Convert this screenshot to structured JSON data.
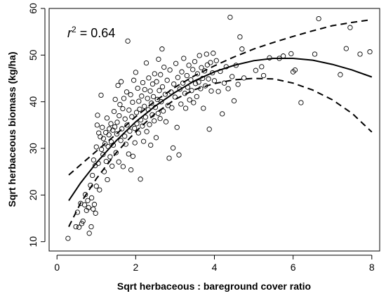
{
  "chart_data": {
    "type": "scatter",
    "xlabel": "Sqrt herbaceous : bareground cover ratio",
    "ylabel": "Sqrt herbaceous biomass (kg/ha)",
    "xlim": [
      -0.2,
      8.2
    ],
    "ylim": [
      8,
      60
    ],
    "xticks": [
      0,
      2,
      4,
      6,
      8
    ],
    "yticks": [
      10,
      20,
      30,
      40,
      50,
      60
    ],
    "grid": false,
    "annotation": {
      "r": "r",
      "sup": "2",
      "rest": " = 0.64"
    },
    "fit_line": {
      "style": "solid",
      "x": [
        0.3,
        0.6,
        1.0,
        1.5,
        2.0,
        2.5,
        3.0,
        3.5,
        4.0,
        4.5,
        5.0,
        5.5,
        6.0,
        6.5,
        7.0,
        7.5,
        8.0
      ],
      "y": [
        18.8,
        22.6,
        26.9,
        31.6,
        35.7,
        39.1,
        42.0,
        44.5,
        46.4,
        47.8,
        48.8,
        49.3,
        49.3,
        48.9,
        48.0,
        46.8,
        45.3
      ]
    },
    "upper_band": {
      "style": "dashed",
      "x": [
        0.3,
        0.6,
        1.0,
        1.5,
        2.0,
        2.5,
        3.0,
        3.5,
        4.0,
        4.5,
        5.0,
        5.5,
        6.0,
        6.5,
        7.0,
        7.5,
        8.0
      ],
      "y": [
        24.3,
        26.5,
        29.4,
        33.0,
        36.8,
        40.2,
        43.1,
        45.6,
        47.7,
        49.6,
        51.3,
        52.7,
        54.0,
        55.2,
        56.3,
        57.0,
        57.6
      ]
    },
    "lower_band": {
      "style": "dashed",
      "x": [
        0.3,
        0.6,
        1.0,
        1.5,
        2.0,
        2.5,
        3.0,
        3.5,
        4.0,
        4.5,
        5.0,
        5.5,
        6.0,
        6.5,
        7.0,
        7.5,
        8.0
      ],
      "y": [
        13.2,
        18.3,
        23.5,
        29.0,
        33.6,
        37.5,
        40.5,
        42.6,
        43.9,
        44.7,
        45.0,
        44.9,
        44.0,
        42.5,
        40.4,
        37.5,
        33.5
      ]
    },
    "points": [
      [
        0.28,
        10.7
      ],
      [
        0.48,
        13.2
      ],
      [
        0.52,
        16.3
      ],
      [
        0.56,
        13.1
      ],
      [
        0.6,
        18.2
      ],
      [
        0.63,
        13.9
      ],
      [
        0.66,
        14.4
      ],
      [
        0.7,
        17.9
      ],
      [
        0.72,
        20.1
      ],
      [
        0.75,
        16.7
      ],
      [
        0.78,
        18.8
      ],
      [
        0.8,
        17.3
      ],
      [
        0.82,
        11.8
      ],
      [
        0.85,
        22.1
      ],
      [
        0.87,
        13.2
      ],
      [
        0.88,
        19.4
      ],
      [
        0.9,
        24.2
      ],
      [
        0.92,
        17.0
      ],
      [
        0.93,
        27.5
      ],
      [
        0.95,
        18.0
      ],
      [
        0.97,
        26.3
      ],
      [
        0.98,
        16.1
      ],
      [
        1.0,
        21.9
      ],
      [
        1.0,
        30.3
      ],
      [
        1.02,
        35.0
      ],
      [
        1.03,
        37.1
      ],
      [
        1.05,
        26.8
      ],
      [
        1.06,
        33.3
      ],
      [
        1.08,
        21.1
      ],
      [
        1.1,
        32.5
      ],
      [
        1.12,
        41.4
      ],
      [
        1.13,
        29.8
      ],
      [
        1.15,
        34.5
      ],
      [
        1.17,
        28.7
      ],
      [
        1.18,
        32.1
      ],
      [
        1.2,
        25.0
      ],
      [
        1.22,
        31.0
      ],
      [
        1.24,
        33.4
      ],
      [
        1.25,
        27.2
      ],
      [
        1.27,
        36.5
      ],
      [
        1.28,
        23.3
      ],
      [
        1.3,
        30.4
      ],
      [
        1.32,
        32.9
      ],
      [
        1.33,
        34.2
      ],
      [
        1.35,
        28.2
      ],
      [
        1.37,
        35.3
      ],
      [
        1.38,
        31.4
      ],
      [
        1.4,
        26.2
      ],
      [
        1.42,
        33.9
      ],
      [
        1.43,
        30.7
      ],
      [
        1.45,
        37.9
      ],
      [
        1.47,
        34.6
      ],
      [
        1.48,
        40.5
      ],
      [
        1.5,
        29.1
      ],
      [
        1.52,
        33.1
      ],
      [
        1.53,
        35.6
      ],
      [
        1.55,
        43.5
      ],
      [
        1.57,
        27.1
      ],
      [
        1.58,
        37.0
      ],
      [
        1.6,
        39.4
      ],
      [
        1.62,
        31.7
      ],
      [
        1.63,
        44.3
      ],
      [
        1.65,
        34.2
      ],
      [
        1.67,
        38.5
      ],
      [
        1.68,
        26.1
      ],
      [
        1.7,
        40.7
      ],
      [
        1.72,
        32.6
      ],
      [
        1.73,
        36.3
      ],
      [
        1.75,
        30.9
      ],
      [
        1.77,
        42.1
      ],
      [
        1.78,
        35.0
      ],
      [
        1.8,
        53.0
      ],
      [
        1.82,
        28.8
      ],
      [
        1.83,
        38.2
      ],
      [
        1.85,
        33.7
      ],
      [
        1.87,
        41.5
      ],
      [
        1.88,
        25.4
      ],
      [
        1.9,
        36.8
      ],
      [
        1.92,
        39.9
      ],
      [
        1.93,
        28.3
      ],
      [
        1.95,
        44.6
      ],
      [
        1.97,
        34.3
      ],
      [
        1.98,
        31.2
      ],
      [
        2.0,
        46.3
      ],
      [
        2.02,
        37.7
      ],
      [
        2.03,
        35.3
      ],
      [
        2.05,
        42.9
      ],
      [
        2.07,
        33.3
      ],
      [
        2.08,
        40.1
      ],
      [
        2.1,
        38.4
      ],
      [
        2.12,
        23.4
      ],
      [
        2.13,
        36.1
      ],
      [
        2.15,
        41.2
      ],
      [
        2.17,
        34.8
      ],
      [
        2.18,
        44.1
      ],
      [
        2.2,
        31.5
      ],
      [
        2.22,
        39.0
      ],
      [
        2.23,
        42.6
      ],
      [
        2.25,
        36.7
      ],
      [
        2.27,
        48.3
      ],
      [
        2.28,
        33.6
      ],
      [
        2.3,
        40.7
      ],
      [
        2.32,
        38.3
      ],
      [
        2.33,
        45.1
      ],
      [
        2.35,
        35.1
      ],
      [
        2.37,
        42.3
      ],
      [
        2.38,
        30.7
      ],
      [
        2.4,
        39.7
      ],
      [
        2.42,
        37.2
      ],
      [
        2.43,
        43.8
      ],
      [
        2.45,
        41.1
      ],
      [
        2.47,
        35.9
      ],
      [
        2.48,
        46.0
      ],
      [
        2.5,
        38.8
      ],
      [
        2.52,
        32.3
      ],
      [
        2.53,
        44.3
      ],
      [
        2.55,
        40.5
      ],
      [
        2.57,
        37.5
      ],
      [
        2.58,
        49.1
      ],
      [
        2.6,
        42.4
      ],
      [
        2.62,
        36.4
      ],
      [
        2.63,
        45.8
      ],
      [
        2.65,
        40.0
      ],
      [
        2.67,
        51.3
      ],
      [
        2.68,
        43.2
      ],
      [
        2.7,
        38.0
      ],
      [
        2.72,
        47.4
      ],
      [
        2.75,
        41.6
      ],
      [
        2.77,
        35.7
      ],
      [
        2.8,
        44.6
      ],
      [
        2.82,
        39.2
      ],
      [
        2.85,
        27.9
      ],
      [
        2.87,
        46.8
      ],
      [
        2.9,
        42.1
      ],
      [
        2.92,
        38.7
      ],
      [
        2.95,
        30.1
      ],
      [
        2.97,
        43.8
      ],
      [
        3.0,
        41.0
      ],
      [
        3.02,
        48.2
      ],
      [
        3.05,
        34.5
      ],
      [
        3.07,
        45.2
      ],
      [
        3.1,
        28.6
      ],
      [
        3.12,
        42.7
      ],
      [
        3.15,
        39.5
      ],
      [
        3.17,
        46.4
      ],
      [
        3.2,
        44.0
      ],
      [
        3.22,
        49.3
      ],
      [
        3.25,
        41.8
      ],
      [
        3.27,
        38.6
      ],
      [
        3.3,
        45.6
      ],
      [
        3.32,
        43.1
      ],
      [
        3.35,
        47.8
      ],
      [
        3.37,
        40.4
      ],
      [
        3.4,
        44.7
      ],
      [
        3.42,
        42.4
      ],
      [
        3.45,
        46.9
      ],
      [
        3.47,
        39.8
      ],
      [
        3.5,
        48.6
      ],
      [
        3.52,
        43.9
      ],
      [
        3.55,
        41.1
      ],
      [
        3.57,
        46.0
      ],
      [
        3.6,
        44.2
      ],
      [
        3.62,
        49.9
      ],
      [
        3.65,
        42.8
      ],
      [
        3.67,
        47.3
      ],
      [
        3.7,
        45.0
      ],
      [
        3.72,
        38.6
      ],
      [
        3.75,
        46.6
      ],
      [
        3.77,
        43.4
      ],
      [
        3.8,
        50.2
      ],
      [
        3.82,
        47.9
      ],
      [
        3.85,
        44.9
      ],
      [
        3.87,
        34.1
      ],
      [
        3.9,
        48.4
      ],
      [
        3.92,
        42.3
      ],
      [
        3.95,
        46.2
      ],
      [
        3.97,
        50.4
      ],
      [
        4.0,
        44.5
      ],
      [
        4.05,
        48.8
      ],
      [
        4.1,
        42.2
      ],
      [
        4.15,
        46.5
      ],
      [
        4.2,
        37.4
      ],
      [
        4.25,
        44.0
      ],
      [
        4.3,
        47.5
      ],
      [
        4.35,
        42.8
      ],
      [
        4.4,
        58.1
      ],
      [
        4.45,
        45.4
      ],
      [
        4.5,
        40.2
      ],
      [
        4.55,
        47.8
      ],
      [
        4.6,
        43.7
      ],
      [
        4.65,
        53.9
      ],
      [
        4.7,
        51.3
      ],
      [
        4.75,
        45.1
      ],
      [
        5.05,
        46.7
      ],
      [
        5.2,
        47.5
      ],
      [
        5.25,
        45.6
      ],
      [
        5.4,
        49.4
      ],
      [
        5.65,
        49.3
      ],
      [
        5.75,
        49.8
      ],
      [
        5.95,
        50.3
      ],
      [
        6.0,
        46.4
      ],
      [
        6.05,
        46.8
      ],
      [
        6.2,
        39.8
      ],
      [
        6.55,
        50.2
      ],
      [
        6.65,
        57.8
      ],
      [
        7.2,
        45.8
      ],
      [
        7.35,
        51.4
      ],
      [
        7.45,
        55.9
      ],
      [
        7.7,
        50.2
      ],
      [
        7.95,
        50.7
      ]
    ]
  }
}
